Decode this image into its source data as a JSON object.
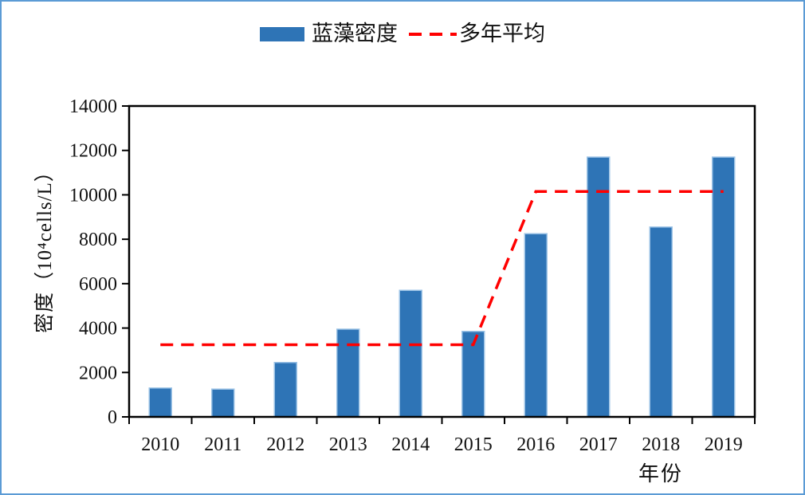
{
  "page": {
    "background": "#FFFFFF",
    "border_color": "#5B9BD5"
  },
  "legend": {
    "position": "top-center",
    "items": [
      {
        "label": "蓝藻密度",
        "marker": "bar-swatch",
        "color": "#2E74B6"
      },
      {
        "label": "多年平均",
        "marker": "dashed-line",
        "color": "#FF0000"
      }
    ]
  },
  "chart_data": {
    "type": "bar",
    "title": "",
    "xlabel": "年份",
    "ylabel": "密度（10⁴cells/L）",
    "categories": [
      "2010",
      "2011",
      "2012",
      "2013",
      "2014",
      "2015",
      "2016",
      "2017",
      "2018",
      "2019"
    ],
    "series": [
      {
        "name": "蓝藻密度",
        "type": "bar",
        "color": "#2E74B6",
        "edge_color": "#9CC3E6",
        "values": [
          1300,
          1250,
          2450,
          3950,
          5700,
          3850,
          8250,
          11700,
          8550,
          11700
        ]
      },
      {
        "name": "多年平均",
        "type": "line",
        "style": "dashed",
        "color": "#FF0000",
        "values": [
          3250,
          3250,
          3250,
          3250,
          3250,
          3250,
          10150,
          10150,
          10150,
          10150
        ]
      }
    ],
    "ylim": [
      0,
      14000
    ],
    "yticks": [
      0,
      2000,
      4000,
      6000,
      8000,
      10000,
      12000,
      14000
    ],
    "grid": false,
    "plot_frame": true,
    "axis_color": "#000000",
    "legend_position": "top-center"
  }
}
